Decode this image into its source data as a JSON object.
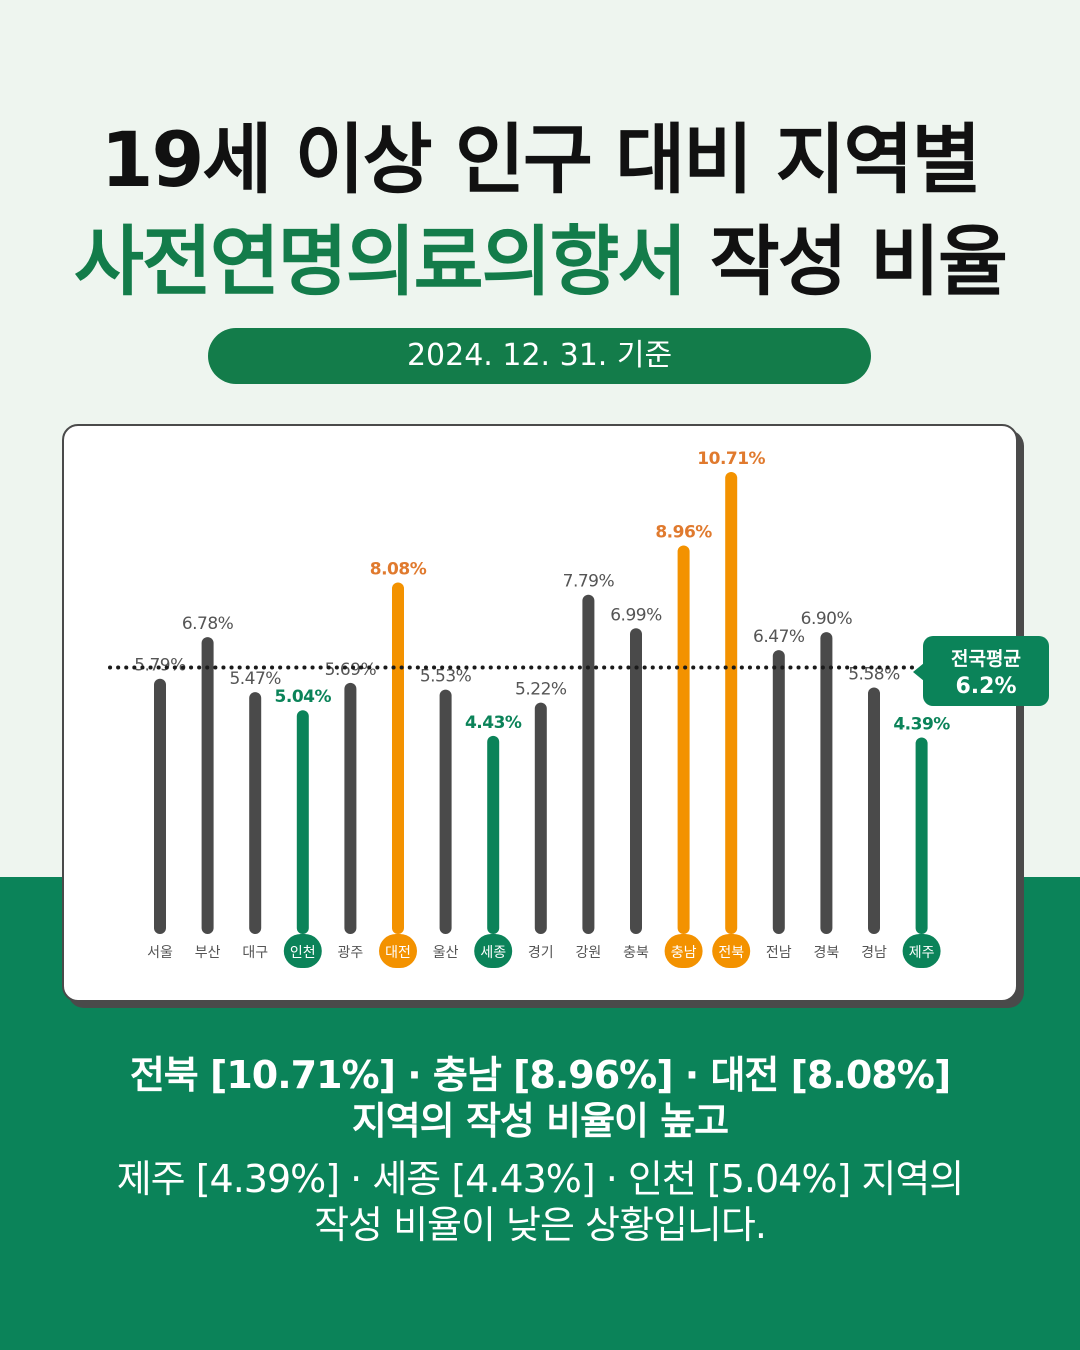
{
  "header": {
    "title_line1": "19세 이상 인구 대비 지역별",
    "title_line2_highlight": "사전연명의료의향서",
    "title_line2_rest": " 작성 비율",
    "date_label": "2024. 12. 31. 기준"
  },
  "colors": {
    "normal_bar": "#4a4a4a",
    "high_bar": "#f39200",
    "high_label": "#e07a2e",
    "low_bar": "#0b8359",
    "brand_green": "#137c4a",
    "background": "#eef5ef"
  },
  "average_badge": {
    "line1": "전국평균",
    "line2": "6.2%"
  },
  "chart_data": {
    "type": "bar",
    "categories": [
      "서울",
      "부산",
      "대구",
      "인천",
      "광주",
      "대전",
      "울산",
      "세종",
      "경기",
      "강원",
      "충북",
      "충남",
      "전북",
      "전남",
      "경북",
      "경남",
      "제주"
    ],
    "values": [
      5.79,
      6.78,
      5.47,
      5.04,
      5.69,
      8.08,
      5.53,
      4.43,
      5.22,
      7.79,
      6.99,
      8.96,
      10.71,
      6.47,
      6.9,
      5.58,
      4.39
    ],
    "value_labels": [
      "5.79%",
      "6.78%",
      "5.47%",
      "5.04%",
      "5.69%",
      "8.08%",
      "5.53%",
      "4.43%",
      "5.22%",
      "7.79%",
      "6.99%",
      "8.96%",
      "10.71%",
      "6.47%",
      "6.90%",
      "5.58%",
      "4.39%"
    ],
    "highlight": [
      "normal",
      "normal",
      "normal",
      "low",
      "normal",
      "high",
      "normal",
      "low",
      "normal",
      "normal",
      "normal",
      "high",
      "high",
      "normal",
      "normal",
      "normal",
      "low"
    ],
    "reference_line": {
      "value": 6.2
    },
    "ylim": [
      0,
      11
    ],
    "grid": false,
    "title": "",
    "xlabel": "",
    "ylabel": ""
  },
  "summary": {
    "line1": "전북 [10.71%] · 충남 [8.96%] · 대전 [8.08%]",
    "line2": "지역의 작성 비율이 높고",
    "line3": "제주 [4.39%] · 세종 [4.43%] · 인천 [5.04%] 지역의",
    "line4": "작성 비율이 낮은 상황입니다."
  }
}
